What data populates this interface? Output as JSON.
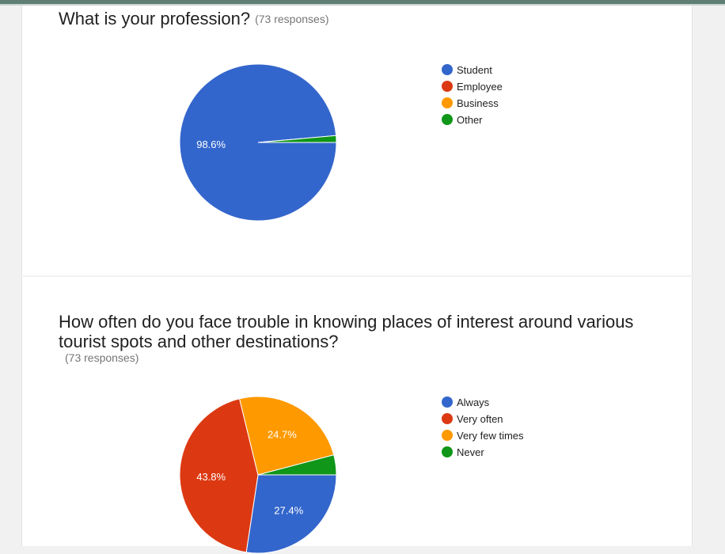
{
  "page": {
    "accent_bar_color": "#5f7e74"
  },
  "charts": [
    {
      "title": "What is your profession?",
      "responses": "(73 responses)",
      "chart_data": {
        "type": "pie",
        "categories": [
          "Student",
          "Employee",
          "Business",
          "Other"
        ],
        "values": [
          98.6,
          0,
          0,
          1.4
        ],
        "labels": [
          "98.6%",
          "",
          "",
          ""
        ],
        "colors": [
          "#3366cc",
          "#dc3912",
          "#ff9900",
          "#109618"
        ],
        "legend_position": "right"
      }
    },
    {
      "title": "How often do you face trouble in knowing places of interest around various tourist spots and other destinations?",
      "responses": "(73 responses)",
      "chart_data": {
        "type": "pie",
        "categories": [
          "Always",
          "Very often",
          "Very few times",
          "Never"
        ],
        "values": [
          27.4,
          43.8,
          24.7,
          4.1
        ],
        "labels": [
          "27.4%",
          "43.8%",
          "24.7%",
          ""
        ],
        "colors": [
          "#3366cc",
          "#dc3912",
          "#ff9900",
          "#109618"
        ],
        "legend_position": "right"
      }
    }
  ]
}
